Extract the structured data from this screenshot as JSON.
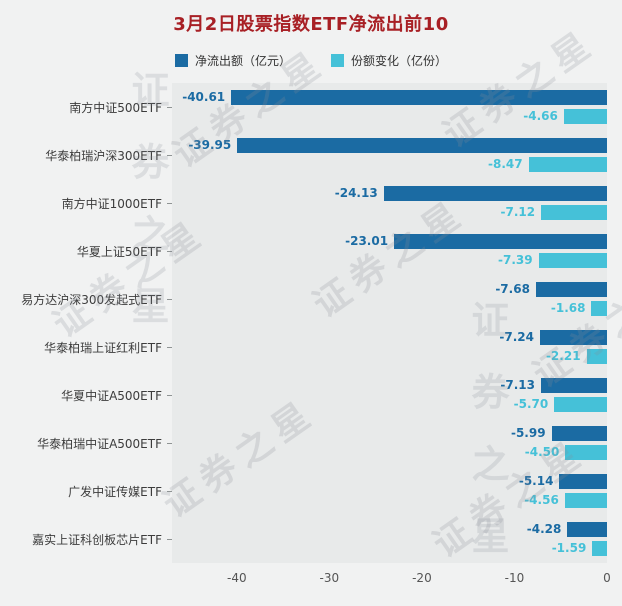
{
  "title": "3月2日股票指数ETF净流出前10",
  "watermark": "证券之星",
  "colors": {
    "outflow": "#1b6ba3",
    "share": "#45c1d8",
    "title": "#a82025"
  },
  "legend": [
    {
      "label": "净流出额（亿元）",
      "color": "#1b6ba3"
    },
    {
      "label": "份额变化（亿份）",
      "color": "#45c1d8"
    }
  ],
  "chart_data": {
    "type": "bar",
    "orientation": "horizontal",
    "title": "3月2日股票指数ETF净流出前10",
    "categories": [
      "南方中证500ETF",
      "华泰柏瑞沪深300ETF",
      "南方中证1000ETF",
      "华夏上证50ETF",
      "易方达沪深300发起式ETF",
      "华泰柏瑞上证红利ETF",
      "华夏中证A500ETF",
      "华泰柏瑞中证A500ETF",
      "广发中证传媒ETF",
      "嘉实上证科创板芯片ETF"
    ],
    "series": [
      {
        "name": "净流出额（亿元）",
        "color": "#1b6ba3",
        "values": [
          -40.61,
          -39.95,
          -24.13,
          -23.01,
          -7.68,
          -7.24,
          -7.13,
          -5.99,
          -5.14,
          -4.28
        ]
      },
      {
        "name": "份额变化（亿份）",
        "color": "#45c1d8",
        "values": [
          -4.66,
          -8.47,
          -7.12,
          -7.39,
          -1.68,
          -2.21,
          -5.7,
          -4.5,
          -4.56,
          -1.59
        ]
      }
    ],
    "xlim": [
      -47,
      0
    ],
    "xticks": [
      -40,
      -30,
      -20,
      -10,
      0
    ],
    "legend_position": "top",
    "grid": false
  }
}
